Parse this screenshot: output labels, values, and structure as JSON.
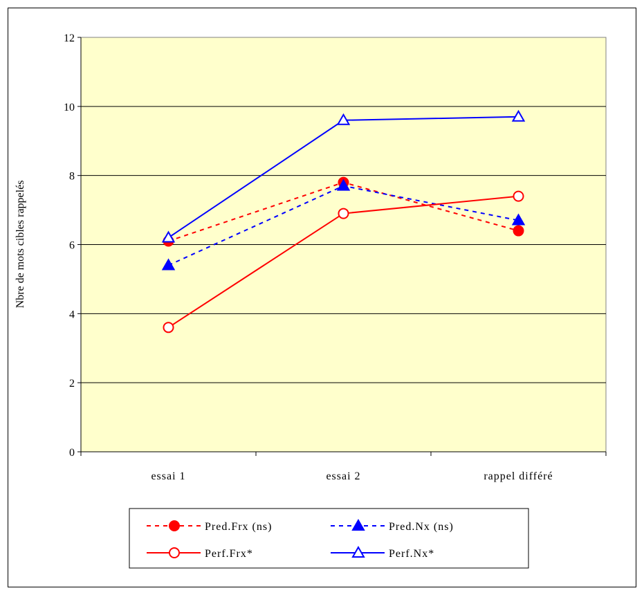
{
  "chart_data": {
    "type": "line",
    "title": "",
    "xlabel": "",
    "ylabel": "Nbre de mots cibles rappelés",
    "ylim": [
      0,
      12
    ],
    "yticks": [
      0,
      2,
      4,
      6,
      8,
      10,
      12
    ],
    "categories": [
      "essai 1",
      "essai 2",
      "rappel différé"
    ],
    "grid": true,
    "plot_background": "#FFFFCC",
    "legend_position": "bottom",
    "series": [
      {
        "name": "Pred.Frx (ns)",
        "values": [
          6.1,
          7.8,
          6.4
        ],
        "color": "#FF0000",
        "dash": "dashed",
        "marker": "circle",
        "filled": true
      },
      {
        "name": "Pred.Nx (ns)",
        "values": [
          5.4,
          7.7,
          6.7
        ],
        "color": "#0000FF",
        "dash": "dashed",
        "marker": "triangle",
        "filled": true
      },
      {
        "name": "Perf.Frx*",
        "values": [
          3.6,
          6.9,
          7.4
        ],
        "color": "#FF0000",
        "dash": "solid",
        "marker": "circle",
        "filled": false
      },
      {
        "name": "Perf.Nx*",
        "values": [
          6.2,
          9.6,
          9.7
        ],
        "color": "#0000FF",
        "dash": "solid",
        "marker": "triangle",
        "filled": false
      }
    ]
  }
}
